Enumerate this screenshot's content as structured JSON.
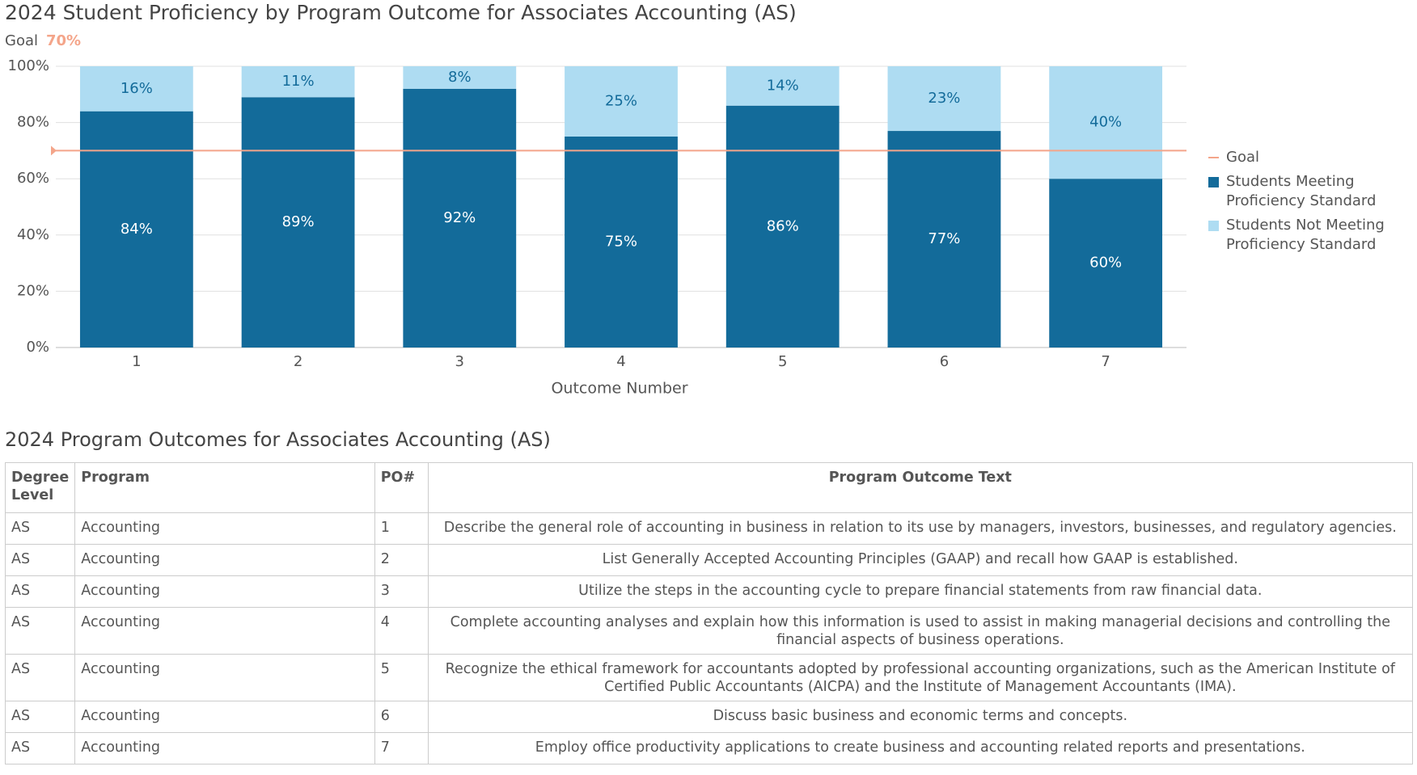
{
  "chart_data": {
    "type": "stacked-bar",
    "title": "2024 Student Proficiency by Program Outcome for Associates Accounting (AS)",
    "goal": {
      "name": "Goal",
      "value": 70,
      "value_label": "70%",
      "color": "#f4a58a"
    },
    "x_label": "Outcome Number",
    "categories": [
      "1",
      "2",
      "3",
      "4",
      "5",
      "6",
      "7"
    ],
    "series": [
      {
        "name": "Students Meeting Proficiency Standard",
        "color": "#136b9a",
        "label_color": "#ffffff",
        "values": [
          84,
          89,
          92,
          75,
          86,
          77,
          60
        ],
        "value_labels": [
          "84%",
          "89%",
          "92%",
          "75%",
          "86%",
          "77%",
          "60%"
        ]
      },
      {
        "name": "Students Not Meeting Proficiency Standard",
        "color": "#aedcf2",
        "label_color": "#136b9a",
        "values": [
          16,
          11,
          8,
          25,
          14,
          23,
          40
        ],
        "value_labels": [
          "16%",
          "11%",
          "8%",
          "25%",
          "14%",
          "23%",
          "40%"
        ]
      }
    ],
    "ylim": [
      0,
      100
    ],
    "yticks": [
      {
        "value": 0,
        "label": "0%"
      },
      {
        "value": 20,
        "label": "20%"
      },
      {
        "value": 40,
        "label": "40%"
      },
      {
        "value": 60,
        "label": "60%"
      },
      {
        "value": 80,
        "label": "80%"
      },
      {
        "value": 100,
        "label": "100%"
      }
    ],
    "grid": true
  },
  "table": {
    "title": "2024 Program Outcomes for Associates Accounting (AS)",
    "header": [
      "Degree Level",
      "Program",
      "PO#",
      "Program Outcome Text"
    ],
    "rows": [
      [
        "AS",
        "Accounting",
        "1",
        "Describe the general role of accounting in business in relation to its use by managers, investors, businesses, and regulatory agencies."
      ],
      [
        "AS",
        "Accounting",
        "2",
        "List Generally Accepted Accounting Principles (GAAP) and recall how GAAP is established."
      ],
      [
        "AS",
        "Accounting",
        "3",
        "Utilize the steps in the accounting cycle to prepare financial statements from raw financial data."
      ],
      [
        "AS",
        "Accounting",
        "4",
        "Complete accounting analyses and explain how this information is used to assist in making managerial decisions and controlling the financial aspects of business operations."
      ],
      [
        "AS",
        "Accounting",
        "5",
        "Recognize the ethical framework for accountants adopted by professional accounting organizations, such as the American Institute of Certified Public Accountants (AICPA) and the Institute of Management Accountants (IMA)."
      ],
      [
        "AS",
        "Accounting",
        "6",
        "Discuss basic business and economic terms and concepts."
      ],
      [
        "AS",
        "Accounting",
        "7",
        "Employ office productivity applications to create business and accounting related reports and presentations."
      ]
    ]
  }
}
